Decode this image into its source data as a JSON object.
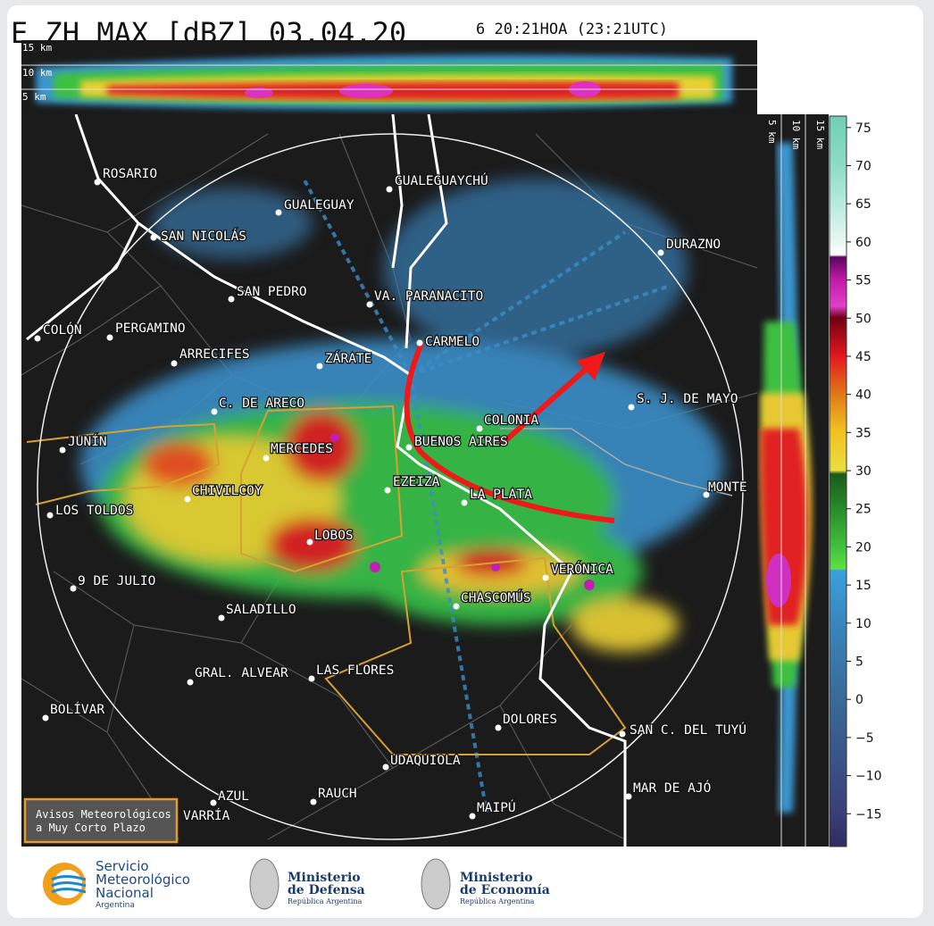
{
  "header": {
    "title": "E ZH MAX [dBZ] 03.04.20",
    "time": "6 20:21HOA (23:21UTC)"
  },
  "top_profile": {
    "labels": [
      "15 km",
      "10 km",
      "5 km"
    ]
  },
  "side_profile": {
    "labels": [
      "5 km",
      "10 km",
      "15 km"
    ]
  },
  "colorbar": {
    "clim": [
      -19.3,
      76.5
    ],
    "ticks": [
      75,
      70,
      65,
      60,
      55,
      50,
      45,
      40,
      35,
      30,
      25,
      20,
      15,
      10,
      5,
      0,
      {
        "value": -5,
        "label": "−5"
      },
      {
        "value": -10,
        "label": "−10"
      },
      {
        "value": -15,
        "label": "−15"
      }
    ]
  },
  "map": {
    "places": [
      "ROSARIO",
      "GUALEGUAYCHÚ",
      "GUALEGUAY",
      "SAN NICOLÁS",
      "DURAZNO",
      "SAN PEDRO",
      "VA. PARANACITO",
      "COLÓN",
      "PERGAMINO",
      "CARMELO",
      "ARRECIFES",
      "ZÁRATE",
      "S. J. DE MAYO",
      "C. DE ARECO",
      "COLONIA",
      "BUENOS AIRES",
      "JUNÍN",
      "MERCEDES",
      "EZEIZA",
      "CHIVILCOY",
      "LA PLATA",
      "MONTE",
      "LOS TOLDOS",
      "LOBOS",
      "VERÓNICA",
      "9 DE JULIO",
      "CHASCOMÚS",
      "SALADILLO",
      "GRAL. ALVEAR",
      "LAS FLORES",
      "BOLÍVAR",
      "DOLORES",
      "SAN C. DEL TUYÚ",
      "UDAQUIOLA",
      "MAR DE AJÓ",
      "RAUCH",
      "AZUL",
      "MAIPÚ",
      "VARRÍA"
    ]
  },
  "legend": {
    "lines": [
      "Avisos Meteorológicos",
      "a Muy Corto Plazo"
    ]
  },
  "footer": {
    "smn": [
      "Servicio",
      "Meteorológico",
      "Nacional",
      "Argentina"
    ],
    "defensa": [
      "Ministerio",
      "de Defensa",
      "República Argentina"
    ],
    "economia": [
      "Ministerio",
      "de Economía",
      "República Argentina"
    ]
  }
}
